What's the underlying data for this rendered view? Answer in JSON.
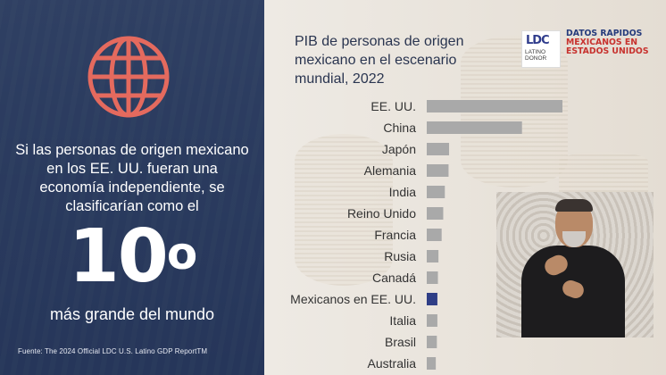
{
  "left_panel": {
    "icon": "globe-icon",
    "statement": "Si las personas de origen mexicano en los EE. UU. fueran una economía independiente, se clasificarían como el",
    "rank_number": "10",
    "rank_suffix": "o",
    "tagline": "más grande del mundo",
    "source": "Fuente: The 2024 Official LDC U.S. Latino GDP ReportTM"
  },
  "header": {
    "logo_mark": "LDC",
    "logo_line1": "LATINO",
    "logo_line2": "DONOR",
    "tag_line1": "DATOS RAPIDOS",
    "tag_line2": "MEXICANOS EN ESTADOS UNIDOS"
  },
  "colors": {
    "bar": "#a9a9a9",
    "highlight": "#2f3e86",
    "label": "#333333",
    "accent_red": "#c7322e",
    "accent_blue": "#253b7c"
  },
  "chart_data": {
    "type": "bar",
    "orientation": "horizontal",
    "title": "PIB de personas de origen mexicano en el escenario mundial, 2022",
    "categories": [
      "EE. UU.",
      "China",
      "Japón",
      "Alemania",
      "India",
      "Reino Unido",
      "Francia",
      "Rusia",
      "Canadá",
      "Mexicanos en EE. UU.",
      "Italia",
      "Brasil",
      "Australia"
    ],
    "values": [
      25.5,
      17.9,
      4.2,
      4.1,
      3.4,
      3.1,
      2.8,
      2.2,
      2.1,
      2.0,
      2.0,
      1.9,
      1.7
    ],
    "highlight": "Mexicanos en EE. UU.",
    "xlabel": "",
    "ylabel": "",
    "grid": false,
    "legend": "none"
  }
}
